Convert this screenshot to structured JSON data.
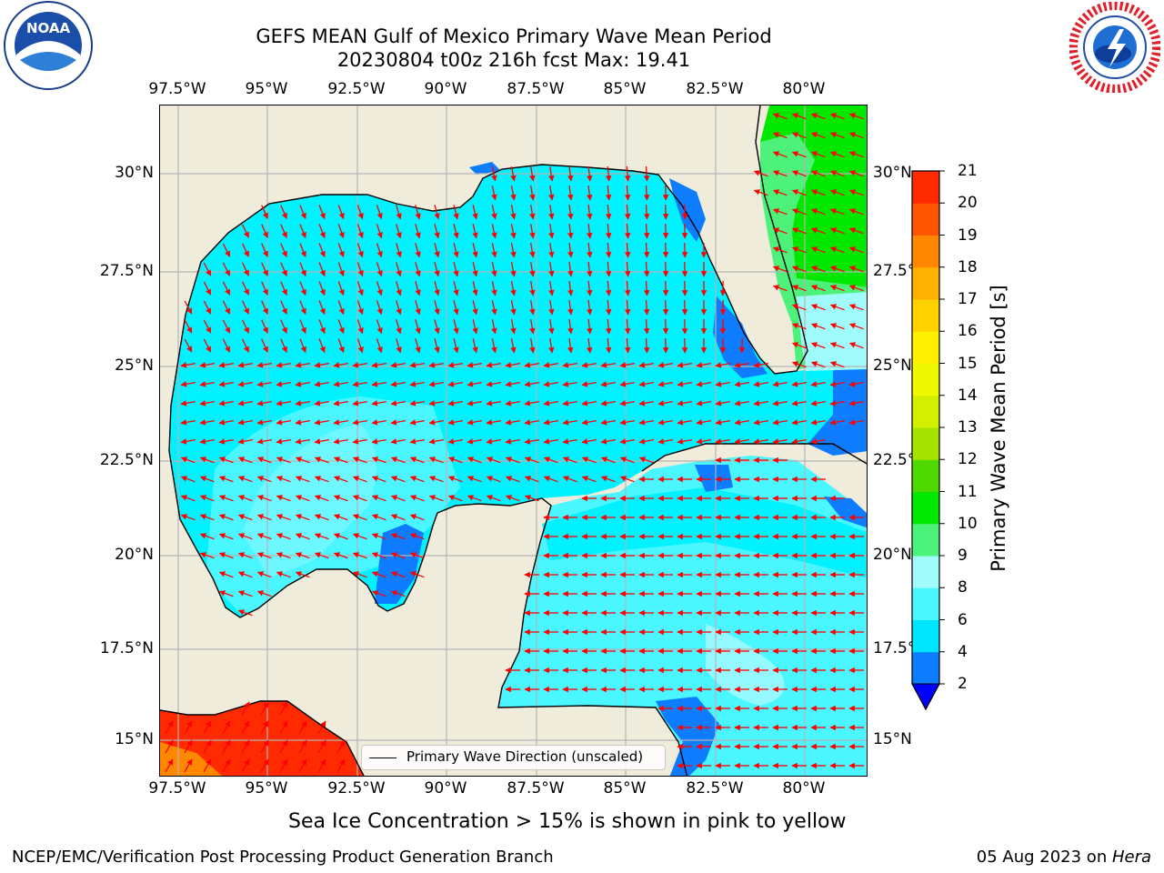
{
  "header": {
    "title_line1": "GEFS MEAN Gulf of Mexico Primary Wave Mean Period",
    "title_line2": "20230804 t00z 216h fcst   Max: 19.41"
  },
  "logos": {
    "left": "NOAA",
    "right": "NATIONAL WEATHER SERVICE"
  },
  "map": {
    "lon_ticks": [
      "97.5°W",
      "95°W",
      "92.5°W",
      "90°W",
      "87.5°W",
      "85°W",
      "82.5°W",
      "80°W"
    ],
    "lat_ticks": [
      "30°N",
      "27.5°N",
      "25°N",
      "22.5°N",
      "20°N",
      "17.5°N",
      "15°N"
    ],
    "lat_ticks_right": [
      "30°N",
      "27.5°N",
      "25°N",
      "22.5°N",
      "20°N",
      "17.5°N",
      "15°N"
    ],
    "legend_label": "Primary Wave Direction (unscaled)",
    "arrow_color": "#ff0000"
  },
  "colorbar": {
    "label": "Primary Wave Mean Period [s]",
    "ticks": [
      "2",
      "4",
      "6",
      "8",
      "9",
      "10",
      "11",
      "12",
      "13",
      "14",
      "15",
      "16",
      "17",
      "18",
      "19",
      "20",
      "21"
    ],
    "colors": [
      "#0d7cff",
      "#00e5ff",
      "#4af6ff",
      "#a0fcfc",
      "#4cf27a",
      "#00e800",
      "#4ed800",
      "#a6e400",
      "#d2f000",
      "#f0f800",
      "#fff000",
      "#ffd200",
      "#ffb000",
      "#ff8800",
      "#ff5400",
      "#ff2a00"
    ],
    "extend_color": "#0000ff"
  },
  "subtitle": "Sea Ice Concentration > 15% is shown in pink to yellow",
  "footer": {
    "left": "NCEP/EMC/Verification Post Processing Product Generation Branch",
    "right_prefix": "05 Aug 2023 on ",
    "right_host": "Hera"
  }
}
